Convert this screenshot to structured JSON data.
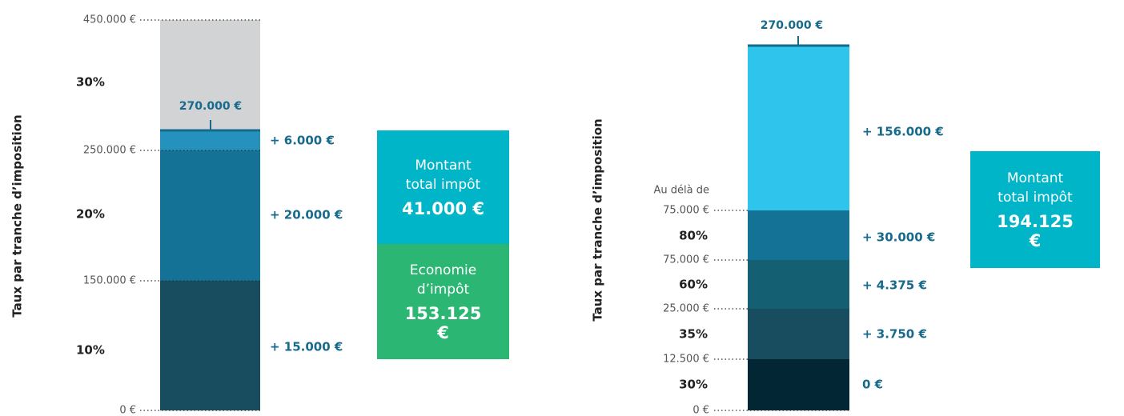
{
  "left": {
    "axis_title": "Taux par tranche d’imposition",
    "axis_labels": [
      "450.000 €",
      "250.000 €",
      "150.000 €",
      "0 €"
    ],
    "rates": [
      "30%",
      "20%",
      "10%"
    ],
    "marker": "270.000 €",
    "amounts": [
      "+ 6.000 €",
      "+ 20.000 €",
      "+ 15.000 €"
    ],
    "total": {
      "label": "Montant total impôt",
      "value": "41.000 €"
    },
    "saving": {
      "label": "Economie d’impôt",
      "value": "153.125 €"
    }
  },
  "right": {
    "axis_title": "Taux par tranche d’imposition",
    "axis_note": "Au délà de",
    "axis_labels": [
      "75.000 €",
      "75.000 €",
      "25.000 €",
      "12.500 €",
      "0 €"
    ],
    "rates": [
      "80%",
      "60%",
      "35%",
      "30%"
    ],
    "marker": "270.000 €",
    "amounts": [
      "+ 156.000 €",
      "+ 30.000 €",
      "+ 4.375 €",
      "+ 3.750 €",
      "0 €"
    ],
    "total": {
      "label": "Montant total impôt",
      "value": "194.125 €"
    }
  }
}
